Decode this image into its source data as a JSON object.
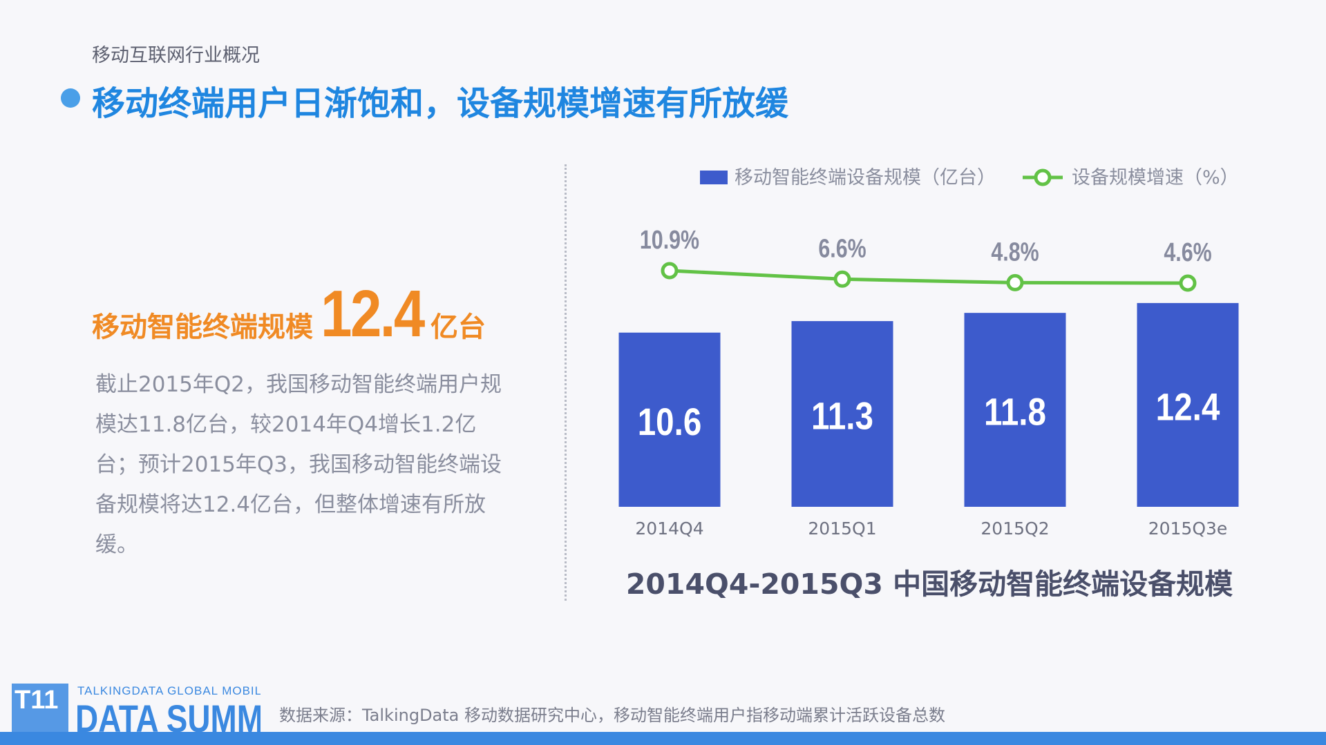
{
  "header": {
    "subtitle": "移动互联网行业概况",
    "title": "移动终端用户日渐饱和，设备规模增速有所放缓"
  },
  "highlight": {
    "label": "移动智能终端规模",
    "value": "12.4",
    "unit": "亿台"
  },
  "description": "截止2015年Q2，我国移动智能终端用户规模达11.8亿台，较2014年Q4增长1.2亿台；预计2015年Q3，我国移动智能终端设备规模将达12.4亿台，但整体增速有所放缓。",
  "chart_data": {
    "type": "bar+line",
    "title": "2014Q4-2015Q3 中国移动智能终端设备规模",
    "categories": [
      "2014Q4",
      "2015Q1",
      "2015Q2",
      "2015Q3e"
    ],
    "series": [
      {
        "name": "移动智能终端设备规模（亿台）",
        "type": "bar",
        "color": "#3d5bcc",
        "values": [
          10.6,
          11.3,
          11.8,
          12.4
        ],
        "labels": [
          "10.6",
          "11.3",
          "11.8",
          "12.4"
        ]
      },
      {
        "name": "设备规模增速（%）",
        "type": "line",
        "color": "#62c246",
        "values": [
          10.9,
          6.6,
          4.8,
          4.6
        ],
        "labels": [
          "10.9%",
          "6.6%",
          "4.8%",
          "4.6%"
        ]
      }
    ],
    "legend": "top",
    "grid": false
  },
  "footer": {
    "logo_line1": "TALKINGDATA GLOBAL MOBILE",
    "logo_line2": "DATA SUMMIT",
    "logo_mark": "T11",
    "source": "数据来源：TalkingData 移动数据研究中心，移动智能终端用户指移动端累计活跃设备总数"
  }
}
